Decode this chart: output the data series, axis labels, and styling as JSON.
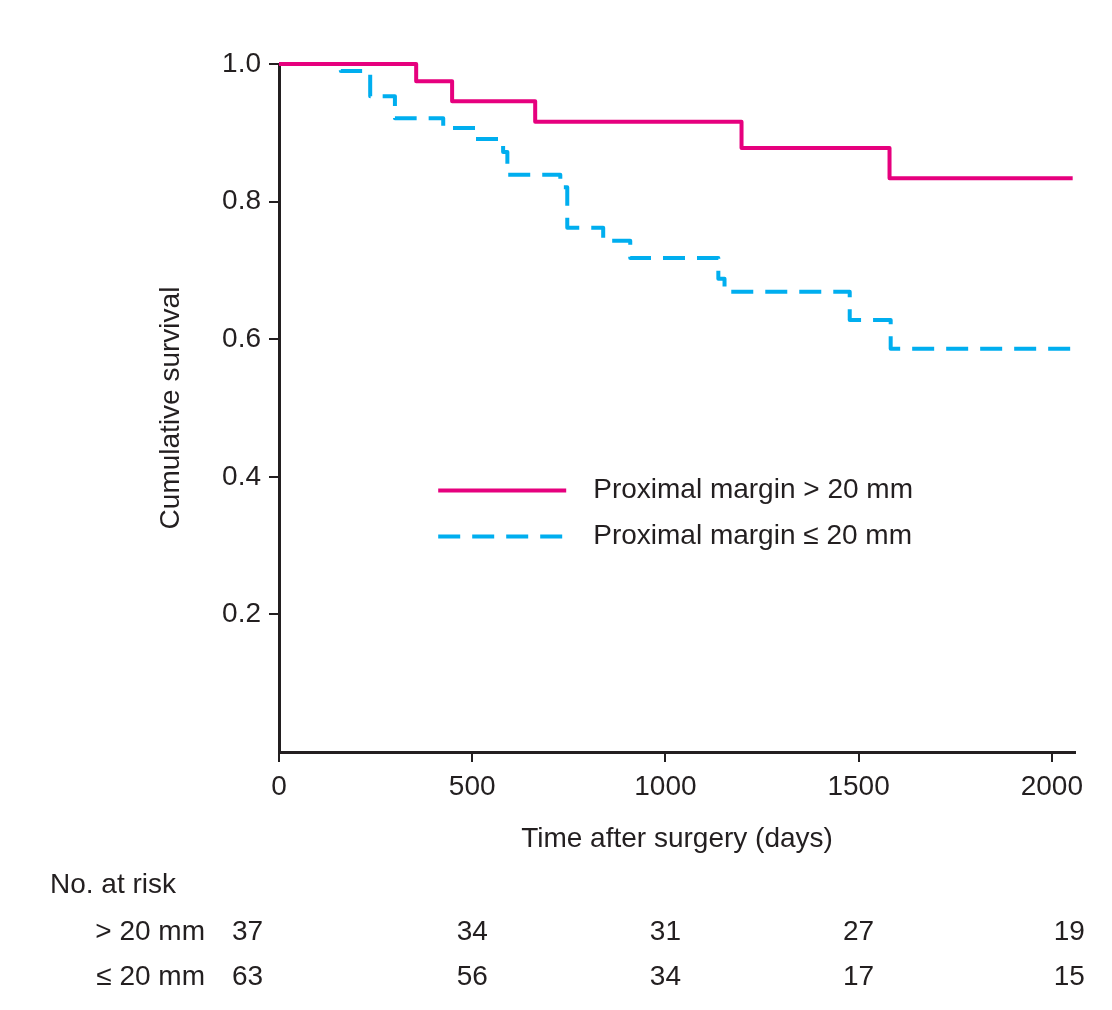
{
  "chart_data": {
    "type": "step",
    "xlabel": "Time after surgery (days)",
    "ylabel": "Cumulative survival",
    "xlim": [
      0,
      2060
    ],
    "xticks": [
      0,
      500,
      1000,
      1500,
      2000
    ],
    "ylim": [
      0,
      1
    ],
    "yticks": [
      {
        "value": 0.2,
        "label": "0.2"
      },
      {
        "value": 0.4,
        "label": "0.4"
      },
      {
        "value": 0.6,
        "label": "0.6"
      },
      {
        "value": 0.8,
        "label": "0.8"
      },
      {
        "value": 1,
        "label": "1.0"
      }
    ],
    "grid": false,
    "legend": "right",
    "marker": "none",
    "series": [
      {
        "name": "Proximal margin > 20 mm",
        "color": "#e6007e",
        "line_style": "solid",
        "x": [
          0,
          355,
          448,
          663,
          1197,
          1580,
          2054
        ],
        "values": [
          1,
          0.975,
          0.946,
          0.916,
          0.878,
          0.834,
          0.834
        ]
      },
      {
        "name": "Proximal margin ≤ 20 mm",
        "color": "#00aeef",
        "line_style": "dashed",
        "x": [
          0,
          160,
          236,
          300,
          425,
          508,
          580,
          591,
          728,
          746,
          839,
          909,
          1137,
          1153,
          1477,
          1583,
          2054
        ],
        "values": [
          1,
          0.99,
          0.953,
          0.921,
          0.907,
          0.891,
          0.872,
          0.839,
          0.821,
          0.762,
          0.743,
          0.718,
          0.688,
          0.669,
          0.628,
          0.586,
          0.586
        ]
      }
    ],
    "annotations": [
      "No. at risk",
      "> 20 mm",
      "37",
      "34",
      "31",
      "27",
      "19",
      "≤ 20 mm",
      "63",
      "56",
      "34",
      "17",
      "15"
    ]
  }
}
